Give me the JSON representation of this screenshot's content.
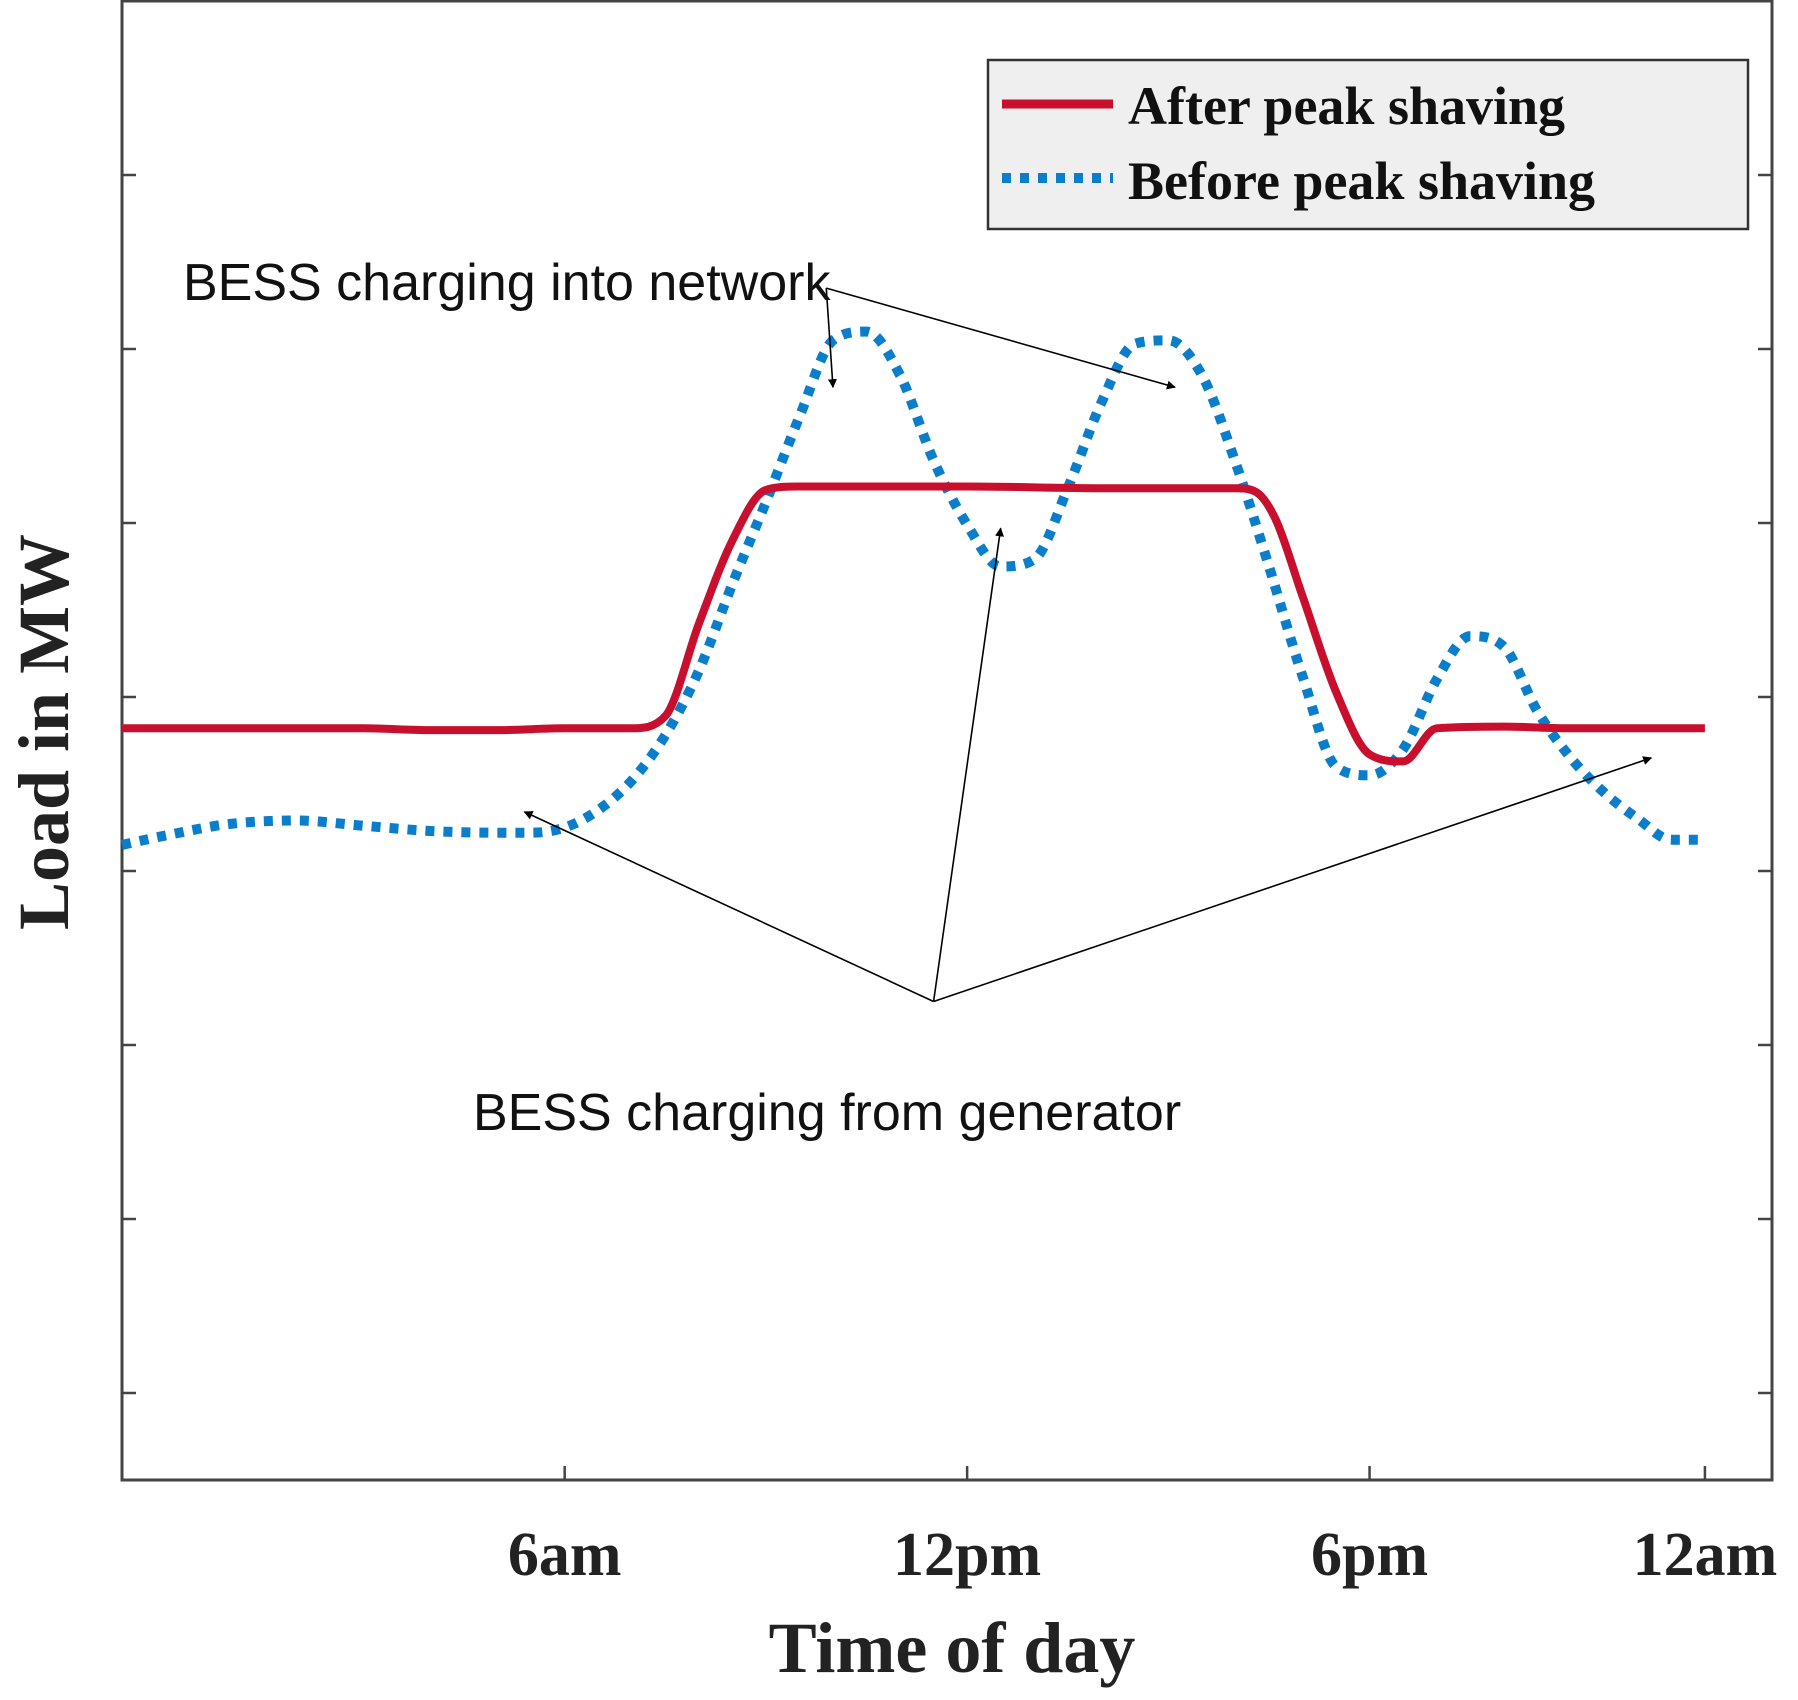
{
  "chart_data": {
    "type": "line",
    "xlabel": "Time of day",
    "ylabel": "Load in MW",
    "xlim": [
      -0.6,
      24.0
    ],
    "ylim": [
      0,
      8.5
    ],
    "x_ticks": [
      {
        "value": 6,
        "label": "6am"
      },
      {
        "value": 12,
        "label": "12pm"
      },
      {
        "value": 18,
        "label": "6pm"
      },
      {
        "value": 23,
        "label": "12am"
      }
    ],
    "y_ticks": [
      0.5,
      1.5,
      2.5,
      3.5,
      4.5,
      5.5,
      6.5,
      7.5
    ],
    "y_tick_labels_visible": false,
    "series": [
      {
        "name": "After peak shaving",
        "color": "#c8102e",
        "style": "solid",
        "x": [
          -0.6,
          3,
          4,
          5,
          6,
          7,
          7.5,
          8.0,
          8.5,
          9.0,
          9.5,
          10,
          12,
          14,
          16,
          16.3,
          16.6,
          17.0,
          17.5,
          18.0,
          18.5,
          19.0,
          20.0,
          21.0,
          22.0,
          23.0
        ],
        "y": [
          4.32,
          4.32,
          4.31,
          4.31,
          4.32,
          4.32,
          4.39,
          4.92,
          5.4,
          5.69,
          5.71,
          5.71,
          5.71,
          5.7,
          5.7,
          5.68,
          5.52,
          5.08,
          4.53,
          4.17,
          4.13,
          4.32,
          4.33,
          4.32,
          4.32,
          4.32
        ]
      },
      {
        "name": "Before peak shaving",
        "color": "#0a7ecb",
        "style": "dotted",
        "x": [
          -0.6,
          0,
          1,
          2,
          3,
          4,
          5,
          5.5,
          6,
          6.5,
          7,
          7.5,
          8,
          8.5,
          9,
          9.5,
          10.0,
          10.5,
          11.0,
          11.5,
          12.0,
          12.5,
          13.0,
          13.5,
          14.0,
          14.5,
          15.0,
          15.5,
          16.0,
          16.5,
          17.0,
          17.5,
          18.0,
          18.5,
          19.0,
          19.5,
          20.0,
          20.5,
          21.0,
          21.5,
          22.0,
          22.5,
          23.0
        ],
        "y": [
          3.65,
          3.7,
          3.77,
          3.79,
          3.76,
          3.73,
          3.72,
          3.72,
          3.75,
          3.85,
          4.02,
          4.28,
          4.65,
          5.15,
          5.62,
          6.11,
          6.55,
          6.6,
          6.35,
          5.86,
          5.49,
          5.25,
          5.29,
          5.7,
          6.19,
          6.53,
          6.55,
          6.35,
          5.85,
          5.25,
          4.62,
          4.1,
          4.05,
          4.2,
          4.6,
          4.85,
          4.79,
          4.42,
          4.15,
          3.95,
          3.8,
          3.68,
          3.68
        ]
      }
    ],
    "legend": {
      "position": "top-right",
      "entries": [
        "After peak shaving",
        "Before peak shaving"
      ]
    },
    "annotations": [
      {
        "text": "BESS charging into network",
        "targets": [
          {
            "x": 10.0,
            "y": 6.28
          },
          {
            "x": 15.1,
            "y": 6.28
          }
        ],
        "source": {
          "x": 9.9,
          "y": 6.85
        }
      },
      {
        "text": "BESS charging from generator",
        "targets": [
          {
            "x": 5.4,
            "y": 3.84
          },
          {
            "x": 12.5,
            "y": 5.47
          },
          {
            "x": 22.2,
            "y": 4.15
          }
        ],
        "source": {
          "x": 11.5,
          "y": 2.75
        }
      }
    ]
  }
}
